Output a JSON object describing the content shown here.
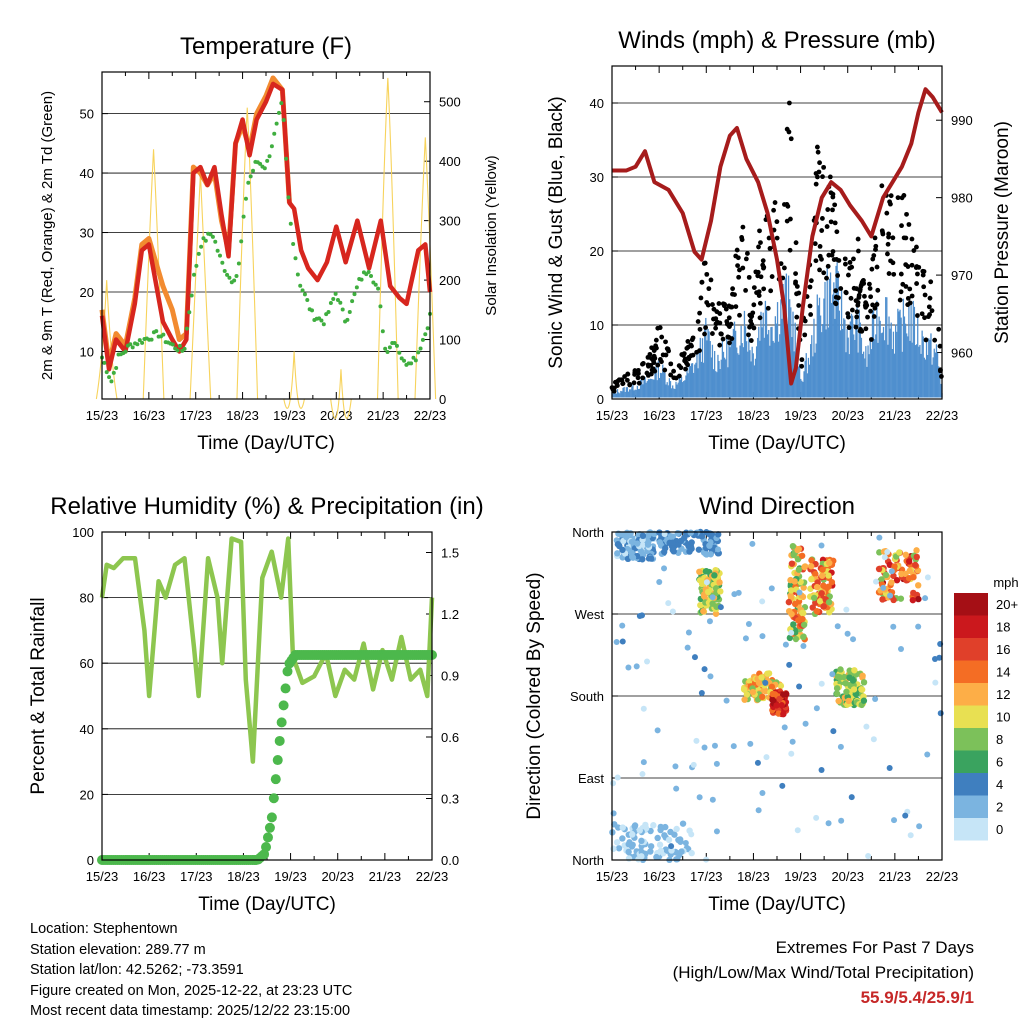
{
  "chart_data": [
    {
      "type": "line",
      "title": "Temperature (F)",
      "xlabel": "Time (Day/UTC)",
      "ylabel": "2m & 9m T (Red, Orange) & 2m Td (Green)",
      "y2label": "Solar Insolation (Yellow)",
      "categories": [
        "15/23",
        "16/23",
        "17/23",
        "18/23",
        "19/23",
        "20/23",
        "21/23",
        "22/23"
      ],
      "xlim": [
        0,
        7
      ],
      "ylim": [
        2,
        57
      ],
      "y2lim": [
        0,
        550
      ],
      "yticks": [
        10,
        20,
        30,
        40,
        50
      ],
      "y2ticks": [
        0,
        100,
        200,
        300,
        400,
        500
      ],
      "series": [
        {
          "name": "2m T",
          "color": "#d7261e",
          "x": [
            0,
            0.15,
            0.3,
            0.5,
            0.7,
            0.85,
            1.0,
            1.3,
            1.5,
            1.65,
            1.8,
            1.95,
            2.1,
            2.25,
            2.4,
            2.55,
            2.7,
            2.85,
            3.0,
            3.15,
            3.3,
            3.5,
            3.65,
            3.85,
            4.0,
            4.1,
            4.25,
            4.4,
            4.6,
            4.8,
            5.0,
            5.2,
            5.45,
            5.7,
            5.95,
            6.15,
            6.35,
            6.5,
            6.75,
            6.9,
            7.0
          ],
          "y": [
            16,
            7,
            12,
            10,
            18,
            27,
            28,
            15,
            12,
            10,
            12,
            40,
            41,
            38,
            41,
            33,
            26,
            45,
            49,
            43,
            49,
            52,
            55,
            54,
            35,
            34,
            27,
            24,
            22,
            25,
            31,
            25,
            32,
            24,
            32,
            21,
            19,
            18,
            27,
            28,
            20
          ]
        },
        {
          "name": "9m T",
          "color": "#f28b30",
          "x": [
            0,
            0.15,
            0.3,
            0.5,
            0.7,
            0.85,
            1.0,
            1.3,
            1.5,
            1.65,
            1.8,
            1.95,
            2.1,
            2.25,
            2.4,
            2.55,
            2.7,
            2.85,
            3.0,
            3.15,
            3.3,
            3.5,
            3.65,
            3.85,
            4.0
          ],
          "y": [
            17,
            8,
            13,
            11,
            19,
            28,
            29,
            21,
            17,
            12,
            13,
            41,
            40,
            38,
            40,
            32,
            27,
            45,
            48,
            44,
            50,
            53,
            56,
            54,
            35
          ]
        },
        {
          "name": "2m Td",
          "color": "#3fae3f",
          "x": [
            0,
            0.2,
            0.35,
            0.6,
            0.9,
            1.2,
            1.5,
            1.75,
            1.95,
            2.1,
            2.35,
            2.55,
            2.75,
            2.9,
            3.1,
            3.3,
            3.5,
            3.7,
            3.85,
            4.0,
            4.2,
            4.5,
            4.75,
            5.0,
            5.2,
            5.5,
            5.7,
            5.9,
            6.05,
            6.25,
            6.45,
            6.7,
            6.9,
            7.0
          ],
          "y": [
            9,
            5,
            9,
            11,
            12,
            13,
            11,
            10,
            22,
            28,
            30,
            25,
            22,
            23,
            38,
            42,
            41,
            47,
            52,
            33,
            22,
            16,
            15,
            20,
            15,
            22,
            24,
            20,
            10,
            12,
            8,
            9,
            13,
            16
          ]
        },
        {
          "name": "Solar Insolation",
          "color": "#f7d35c",
          "axis": "y2",
          "peak_x": [
            0.1,
            1.1,
            2.1,
            3.1,
            4.1,
            5.1,
            6.1,
            6.9
          ],
          "peak_y": [
            200,
            420,
            380,
            490,
            80,
            50,
            540,
            440
          ]
        }
      ]
    },
    {
      "type": "scatter",
      "title": "Winds (mph) & Pressure (mb)",
      "xlabel": "Time (Day/UTC)",
      "ylabel": "Sonic Wind & Gust (Blue, Black)",
      "y2label": "Station Pressure (Maroon)",
      "categories": [
        "15/23",
        "16/23",
        "17/23",
        "18/23",
        "19/23",
        "20/23",
        "21/23",
        "22/23"
      ],
      "xlim": [
        0,
        7
      ],
      "ylim": [
        0,
        45
      ],
      "y2lim": [
        954,
        997
      ],
      "yticks": [
        0,
        10,
        20,
        30,
        40
      ],
      "y2ticks": [
        960,
        970,
        980,
        990
      ],
      "series": [
        {
          "name": "Sonic Wind",
          "color": "#4f8fce",
          "x": [
            0,
            0.5,
            0.8,
            1.0,
            1.3,
            1.5,
            1.8,
            2.0,
            2.2,
            2.5,
            2.8,
            3.0,
            3.2,
            3.4,
            3.7,
            3.85,
            4.0,
            4.2,
            4.4,
            4.6,
            4.8,
            5.0,
            5.2,
            5.4,
            5.6,
            5.8,
            6.0,
            6.3,
            6.6,
            6.9,
            7.0
          ],
          "y": [
            1,
            2,
            3,
            5,
            2,
            3,
            6,
            10,
            6,
            8,
            12,
            7,
            14,
            12,
            16,
            12,
            3,
            7,
            14,
            17,
            16,
            10,
            12,
            6,
            13,
            14,
            10,
            13,
            9,
            7,
            1
          ]
        },
        {
          "name": "Gust",
          "color": "#000000",
          "x": [
            0,
            0.5,
            0.8,
            1.0,
            1.3,
            1.5,
            1.8,
            2.0,
            2.2,
            2.5,
            2.8,
            3.0,
            3.2,
            3.4,
            3.6,
            3.75,
            3.85,
            4.0,
            4.2,
            4.4,
            4.6,
            4.8,
            5.0,
            5.2,
            5.4,
            5.6,
            5.75,
            5.9,
            6.1,
            6.4,
            6.7,
            6.9,
            7.0
          ],
          "y": [
            2,
            4,
            6,
            10,
            5,
            6,
            10,
            21,
            12,
            15,
            24,
            14,
            26,
            24,
            32,
            42,
            30,
            8,
            18,
            38,
            30,
            22,
            18,
            22,
            12,
            22,
            32,
            26,
            30,
            23,
            16,
            14,
            2
          ]
        },
        {
          "name": "Station Pressure",
          "color": "#a61c1c",
          "axis": "y2",
          "x": [
            0,
            0.3,
            0.5,
            0.7,
            0.9,
            1.2,
            1.5,
            1.75,
            1.9,
            2.1,
            2.3,
            2.5,
            2.65,
            2.85,
            3.1,
            3.3,
            3.5,
            3.65,
            3.8,
            3.9,
            4.05,
            4.25,
            4.45,
            4.65,
            4.85,
            5.05,
            5.3,
            5.5,
            5.6,
            5.75,
            5.95,
            6.15,
            6.35,
            6.5,
            6.65,
            6.8,
            6.9,
            7.0
          ],
          "y": [
            983.5,
            983.5,
            984,
            986,
            982,
            981,
            978,
            973,
            972,
            977,
            984,
            988,
            989,
            985,
            982,
            978,
            972,
            966,
            956,
            958,
            966,
            975,
            980,
            982,
            981,
            979,
            977,
            975,
            977,
            980,
            982,
            984,
            987,
            991,
            994,
            993,
            992,
            991
          ]
        }
      ]
    },
    {
      "type": "line",
      "title": "Relative Humidity (%) & Precipitation (in)",
      "xlabel": "Time (Day/UTC)",
      "ylabel": "Percent & Total Rainfall",
      "categories": [
        "15/23",
        "16/23",
        "17/23",
        "18/23",
        "19/23",
        "20/23",
        "21/23",
        "22/23"
      ],
      "xlim": [
        0,
        7
      ],
      "ylim": [
        0,
        100
      ],
      "y2lim": [
        0,
        1.6
      ],
      "yticks": [
        0,
        20,
        40,
        60,
        80,
        100
      ],
      "y2ticks": [
        "0.0",
        "0.3",
        "0.6",
        "0.9",
        "1.2",
        "1.5"
      ],
      "series": [
        {
          "name": "Relative Humidity",
          "color": "#8dc64f",
          "x": [
            0,
            0.1,
            0.25,
            0.45,
            0.7,
            0.9,
            1.0,
            1.2,
            1.35,
            1.55,
            1.75,
            1.95,
            2.05,
            2.25,
            2.45,
            2.55,
            2.75,
            2.95,
            3.05,
            3.2,
            3.4,
            3.6,
            3.8,
            3.95,
            4.05,
            4.25,
            4.5,
            4.75,
            4.95,
            5.15,
            5.35,
            5.55,
            5.75,
            5.95,
            6.15,
            6.35,
            6.55,
            6.75,
            6.9,
            7.0
          ],
          "y": [
            80,
            90,
            89,
            92,
            92,
            70,
            50,
            85,
            80,
            90,
            92,
            65,
            50,
            92,
            80,
            60,
            98,
            97,
            55,
            30,
            86,
            94,
            80,
            98,
            62,
            54,
            56,
            63,
            50,
            58,
            55,
            66,
            52,
            64,
            55,
            68,
            55,
            58,
            50,
            80
          ]
        },
        {
          "name": "Total Precipitation",
          "color": "#4cb84c",
          "axis": "y2",
          "x": [
            0,
            3.3,
            3.45,
            3.6,
            3.8,
            3.95,
            4.1,
            7.0
          ],
          "y": [
            0.0,
            0.0,
            0.03,
            0.2,
            0.65,
            0.95,
            1.0,
            1.0
          ]
        }
      ]
    },
    {
      "type": "scatter",
      "title": "Wind Direction",
      "xlabel": "Time (Day/UTC)",
      "ylabel": "Direction (Colored By Speed)",
      "categories": [
        "15/23",
        "16/23",
        "17/23",
        "18/23",
        "19/23",
        "20/23",
        "21/23",
        "22/23"
      ],
      "yticks": [
        "North",
        "West",
        "South",
        "East",
        "North"
      ],
      "ylim": [
        0,
        360
      ],
      "legend_title": "mph",
      "legend_labels": [
        "20+",
        "18",
        "16",
        "14",
        "12",
        "10",
        "8",
        "6",
        "4",
        "2",
        "0"
      ],
      "legend_colors": [
        "#a50f15",
        "#cb181d",
        "#e0402a",
        "#f46d24",
        "#fdae47",
        "#e8e052",
        "#7cc15a",
        "#3aa35f",
        "#3f7fbf",
        "#7bb4e0",
        "#c6e5f7"
      ],
      "clusters": [
        {
          "x": [
            0.1,
            0.9
          ],
          "dir": [
            330,
            360
          ],
          "speed": [
            0,
            4
          ]
        },
        {
          "x": [
            1.0,
            2.3
          ],
          "dir": [
            335,
            360
          ],
          "speed": [
            2,
            5
          ]
        },
        {
          "x": [
            1.85,
            2.3
          ],
          "dir": [
            270,
            320
          ],
          "speed": [
            6,
            13
          ]
        },
        {
          "x": [
            2.8,
            3.6
          ],
          "dir": [
            175,
            205
          ],
          "speed": [
            8,
            14
          ]
        },
        {
          "x": [
            3.4,
            3.7
          ],
          "dir": [
            160,
            185
          ],
          "speed": [
            14,
            20
          ]
        },
        {
          "x": [
            3.75,
            4.1
          ],
          "dir": [
            240,
            350
          ],
          "speed": [
            6,
            16
          ]
        },
        {
          "x": [
            4.2,
            4.7
          ],
          "dir": [
            270,
            330
          ],
          "speed": [
            8,
            18
          ]
        },
        {
          "x": [
            4.75,
            5.35
          ],
          "dir": [
            170,
            210
          ],
          "speed": [
            6,
            12
          ]
        },
        {
          "x": [
            5.65,
            6.5
          ],
          "dir": [
            285,
            340
          ],
          "speed": [
            8,
            20
          ]
        },
        {
          "x": [
            0.0,
            1.7
          ],
          "dir": [
            0,
            40
          ],
          "speed": [
            0,
            3
          ]
        }
      ]
    }
  ],
  "station": {
    "location": "Location: Stephentown",
    "elevation": "Station elevation: 289.77 m",
    "latlon": "Station lat/lon: 42.5262; -73.3591",
    "created": "Figure created on Mon, 2025-12-22, at 23:23 UTC",
    "recent": "Most recent data timestamp: 2025/12/22 23:15:00"
  },
  "extremes": {
    "title": "Extremes For Past 7 Days",
    "subtitle": "(High/Low/Max Wind/Total Precipitation)",
    "values": "55.9/5.4/25.9/1"
  }
}
